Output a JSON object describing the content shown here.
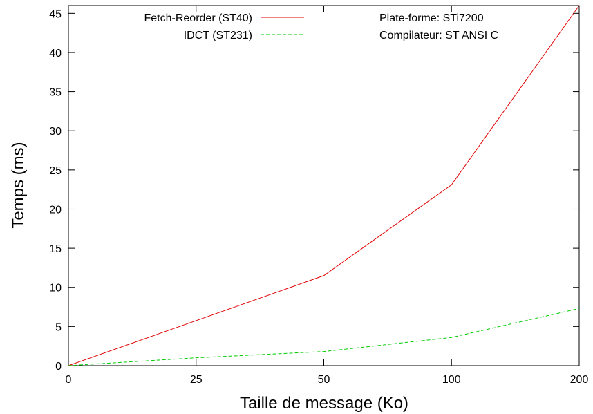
{
  "chart_data": {
    "type": "line",
    "title": "",
    "xlabel": "Taille de message (Ko)",
    "ylabel": "Temps (ms)",
    "categories": [
      "0",
      "25",
      "50",
      "100",
      "200"
    ],
    "x_ticks": [
      "0",
      "25",
      "50",
      "100",
      "200"
    ],
    "ylim": [
      0,
      46
    ],
    "y_ticks": [
      0,
      5,
      10,
      15,
      20,
      25,
      30,
      35,
      40,
      45
    ],
    "grid": false,
    "legend_position": "top-left",
    "series": [
      {
        "name": "Fetch-Reorder (ST40)",
        "color": "#e00000",
        "dash": "solid",
        "points": [
          {
            "x": "0",
            "y": 0
          },
          {
            "x": "50",
            "y": 11.5
          },
          {
            "x": "100",
            "y": 23.1
          },
          {
            "x": "200",
            "y": 46
          }
        ]
      },
      {
        "name": "IDCT (ST231)",
        "color": "#00cc00",
        "dash": "dashed",
        "points": [
          {
            "x": "0",
            "y": 0
          },
          {
            "x": "25",
            "y": 1
          },
          {
            "x": "50",
            "y": 1.8
          },
          {
            "x": "100",
            "y": 3.6
          },
          {
            "x": "200",
            "y": 7.3
          }
        ]
      }
    ],
    "annotations": [
      "Plate-forme: STi7200",
      "Compilateur: ST ANSI C"
    ]
  }
}
